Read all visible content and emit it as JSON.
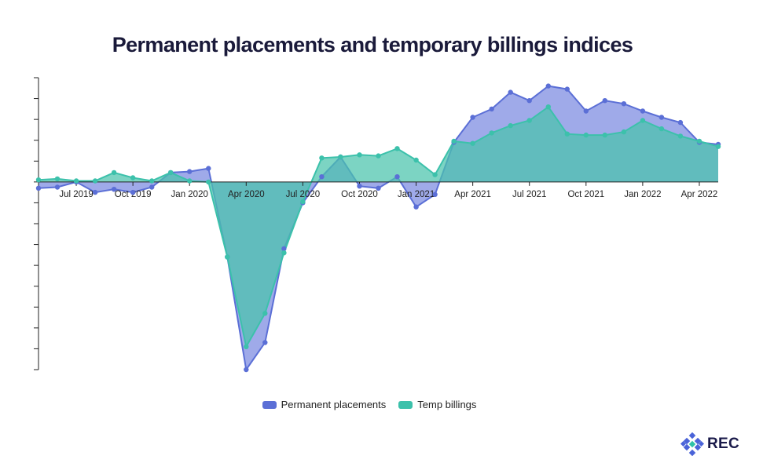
{
  "chart_data": {
    "type": "area",
    "title": "Permanent placements and temporary billings indices",
    "x": [
      "May 2019",
      "Jun 2019",
      "Jul 2019",
      "Aug 2019",
      "Sep 2019",
      "Oct 2019",
      "Nov 2019",
      "Dec 2019",
      "Jan 2020",
      "Feb 2020",
      "Mar 2020",
      "Apr 2020",
      "May 2020",
      "Jun 2020",
      "Jul 2020",
      "Aug 2020",
      "Sep 2020",
      "Oct 2020",
      "Nov 2020",
      "Dec 2020",
      "Jan 2021",
      "Feb 2021",
      "Mar 2021",
      "Apr 2021",
      "May 2021",
      "Jun 2021",
      "Jul 2021",
      "Aug 2021",
      "Sep 2021",
      "Oct 2021",
      "Nov 2021",
      "Dec 2021",
      "Jan 2022",
      "Feb 2022",
      "Mar 2022",
      "Apr 2022",
      "May 2022"
    ],
    "tick_labels": [
      "Jul 2019",
      "Oct 2019",
      "Jan 2020",
      "Apr 2020",
      "Jul 2020",
      "Oct 2020",
      "Jan 2021",
      "Apr 2021",
      "Jul 2021",
      "Oct 2021",
      "Jan 2022",
      "Apr 2022"
    ],
    "tick_indices": [
      2,
      5,
      8,
      11,
      14,
      17,
      20,
      23,
      26,
      29,
      32,
      35
    ],
    "ylim": [
      -9,
      5
    ],
    "y_ticks": [
      -9,
      -8,
      -7,
      -6,
      -5,
      -4,
      -3,
      -2,
      -1,
      0,
      1,
      2,
      3,
      4,
      5
    ],
    "legend_position": "bottom",
    "series": [
      {
        "name": "Permanent placements",
        "color": "#5b6fd6",
        "fill": "rgba(100,118,220,0.62)",
        "values": [
          -0.3,
          -0.25,
          0.0,
          -0.5,
          -0.35,
          -0.5,
          -0.25,
          0.45,
          0.5,
          0.65,
          -3.6,
          -9.0,
          -7.7,
          -3.2,
          -1.0,
          0.25,
          1.2,
          -0.2,
          -0.3,
          0.25,
          -1.2,
          -0.6,
          1.9,
          3.1,
          3.5,
          4.3,
          3.9,
          4.6,
          4.45,
          3.4,
          3.9,
          3.75,
          3.4,
          3.1,
          2.85,
          1.9,
          1.8
        ]
      },
      {
        "name": "Temp billings",
        "color": "#3cc1ab",
        "fill": "rgba(74,196,172,0.72)",
        "values": [
          0.1,
          0.15,
          0.05,
          0.05,
          0.45,
          0.2,
          0.05,
          0.45,
          0.05,
          0.0,
          -3.6,
          -7.9,
          -6.3,
          -3.4,
          -0.95,
          1.15,
          1.2,
          1.3,
          1.25,
          1.6,
          1.05,
          0.35,
          1.95,
          1.85,
          2.35,
          2.7,
          2.95,
          3.6,
          2.3,
          2.25,
          2.25,
          2.4,
          2.95,
          2.55,
          2.2,
          1.95,
          1.7
        ]
      }
    ]
  },
  "brand": {
    "name": "REC"
  }
}
